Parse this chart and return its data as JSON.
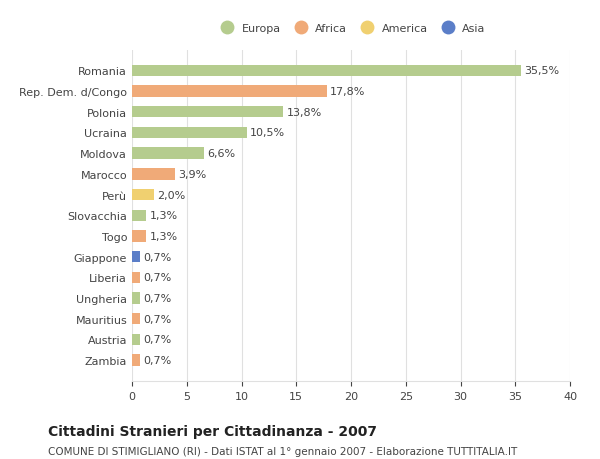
{
  "categories": [
    "Romania",
    "Rep. Dem. d/Congo",
    "Polonia",
    "Ucraina",
    "Moldova",
    "Marocco",
    "Perù",
    "Slovacchia",
    "Togo",
    "Giappone",
    "Liberia",
    "Ungheria",
    "Mauritius",
    "Austria",
    "Zambia"
  ],
  "values": [
    35.5,
    17.8,
    13.8,
    10.5,
    6.6,
    3.9,
    2.0,
    1.3,
    1.3,
    0.7,
    0.7,
    0.7,
    0.7,
    0.7,
    0.7
  ],
  "colors": [
    "#b5cc8e",
    "#f0aa78",
    "#b5cc8e",
    "#b5cc8e",
    "#b5cc8e",
    "#f0aa78",
    "#f0d070",
    "#b5cc8e",
    "#f0aa78",
    "#5b7ec8",
    "#f0aa78",
    "#b5cc8e",
    "#f0aa78",
    "#b5cc8e",
    "#f0aa78"
  ],
  "labels": [
    "35,5%",
    "17,8%",
    "13,8%",
    "10,5%",
    "6,6%",
    "3,9%",
    "2,0%",
    "1,3%",
    "1,3%",
    "0,7%",
    "0,7%",
    "0,7%",
    "0,7%",
    "0,7%",
    "0,7%"
  ],
  "legend_labels": [
    "Europa",
    "Africa",
    "America",
    "Asia"
  ],
  "legend_colors": [
    "#b5cc8e",
    "#f0aa78",
    "#f0d070",
    "#5b7ec8"
  ],
  "xlim": [
    0,
    40
  ],
  "xticks": [
    0,
    5,
    10,
    15,
    20,
    25,
    30,
    35,
    40
  ],
  "title": "Cittadini Stranieri per Cittadinanza - 2007",
  "subtitle": "COMUNE DI STIMIGLIANO (RI) - Dati ISTAT al 1° gennaio 2007 - Elaborazione TUTTITALIA.IT",
  "background_color": "#ffffff",
  "bar_height": 0.55,
  "grid_color": "#e0e0e0",
  "text_color": "#444444",
  "label_fontsize": 8,
  "tick_fontsize": 8,
  "title_fontsize": 10,
  "subtitle_fontsize": 7.5
}
